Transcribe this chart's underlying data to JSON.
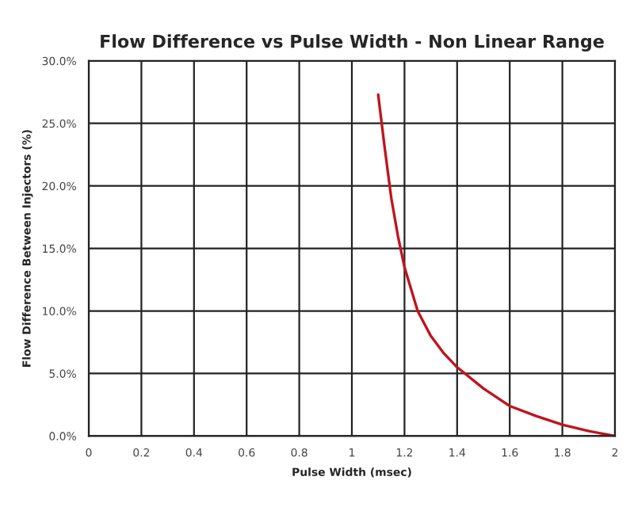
{
  "chart_data": {
    "type": "line",
    "title": "Flow Difference vs Pulse Width - Non Linear Range",
    "xlabel": "Pulse Width (msec)",
    "ylabel": "Flow Difference Between Injectors (%)",
    "series": [
      {
        "color": "#c0141e",
        "x": [
          1.1,
          1.125,
          1.15,
          1.175,
          1.2,
          1.25,
          1.3,
          1.35,
          1.4,
          1.5,
          1.6,
          1.7,
          1.8,
          1.9,
          2.0
        ],
        "values": [
          27.3,
          23,
          19,
          16,
          13.5,
          10,
          8,
          6.6,
          5.5,
          3.8,
          2.4,
          1.6,
          0.9,
          0.4,
          0
        ]
      }
    ],
    "xlim": [
      0,
      2
    ],
    "xticks": [
      0,
      0.2,
      0.4,
      0.6,
      0.8,
      1,
      1.2,
      1.4,
      1.6,
      1.8,
      2
    ],
    "ylim": [
      0,
      30
    ],
    "yticks": [
      {
        "value": 0,
        "label": "0.0%"
      },
      {
        "value": 5,
        "label": "5.0%"
      },
      {
        "value": 10,
        "label": "10.0%"
      },
      {
        "value": 15,
        "label": "15.0%"
      },
      {
        "value": 20,
        "label": "20.0%"
      },
      {
        "value": 25,
        "label": "25.0%"
      },
      {
        "value": 30,
        "label": "30.0%"
      }
    ],
    "grid": true,
    "marker": "none",
    "line_style": "solid"
  }
}
